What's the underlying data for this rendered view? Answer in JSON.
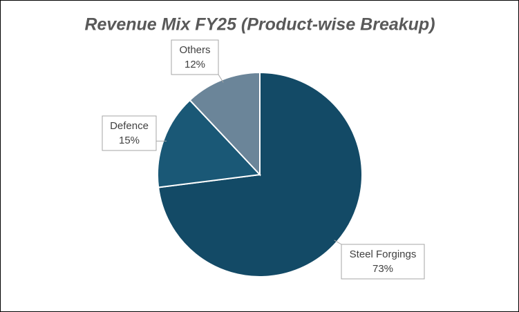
{
  "chart_data": {
    "type": "pie",
    "title": "Revenue Mix FY25 (Product-wise Breakup)",
    "categories": [
      "Steel Forgings",
      "Defence",
      "Others"
    ],
    "values": [
      73,
      15,
      12
    ],
    "value_labels": [
      "73%",
      "15%",
      "12%"
    ],
    "colors": [
      "#134a66",
      "#1a5876",
      "#6b8599"
    ]
  }
}
